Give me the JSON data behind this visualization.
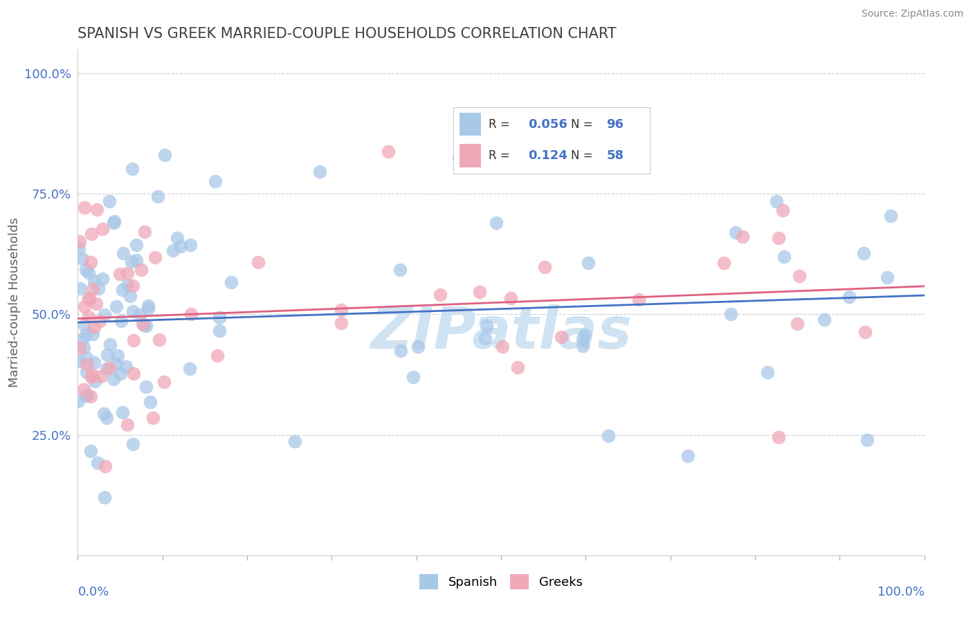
{
  "title": "SPANISH VS GREEK MARRIED-COUPLE HOUSEHOLDS CORRELATION CHART",
  "source": "Source: ZipAtlas.com",
  "ylabel": "Married-couple Households",
  "spanish_R": 0.056,
  "spanish_N": 96,
  "greek_R": 0.124,
  "greek_N": 58,
  "spanish_color": "#a8c8e8",
  "greek_color": "#f0a8b8",
  "spanish_line_color": "#4472c4",
  "greek_line_color": "#e06080",
  "background_color": "#ffffff",
  "grid_color": "#cccccc",
  "tick_label_color": "#4472c4",
  "watermark_color": "#c8dff0",
  "title_color": "#404040",
  "ylabel_color": "#606060",
  "source_color": "#888888",
  "legend_text_color": "#333333",
  "legend_value_color": "#4472c4"
}
